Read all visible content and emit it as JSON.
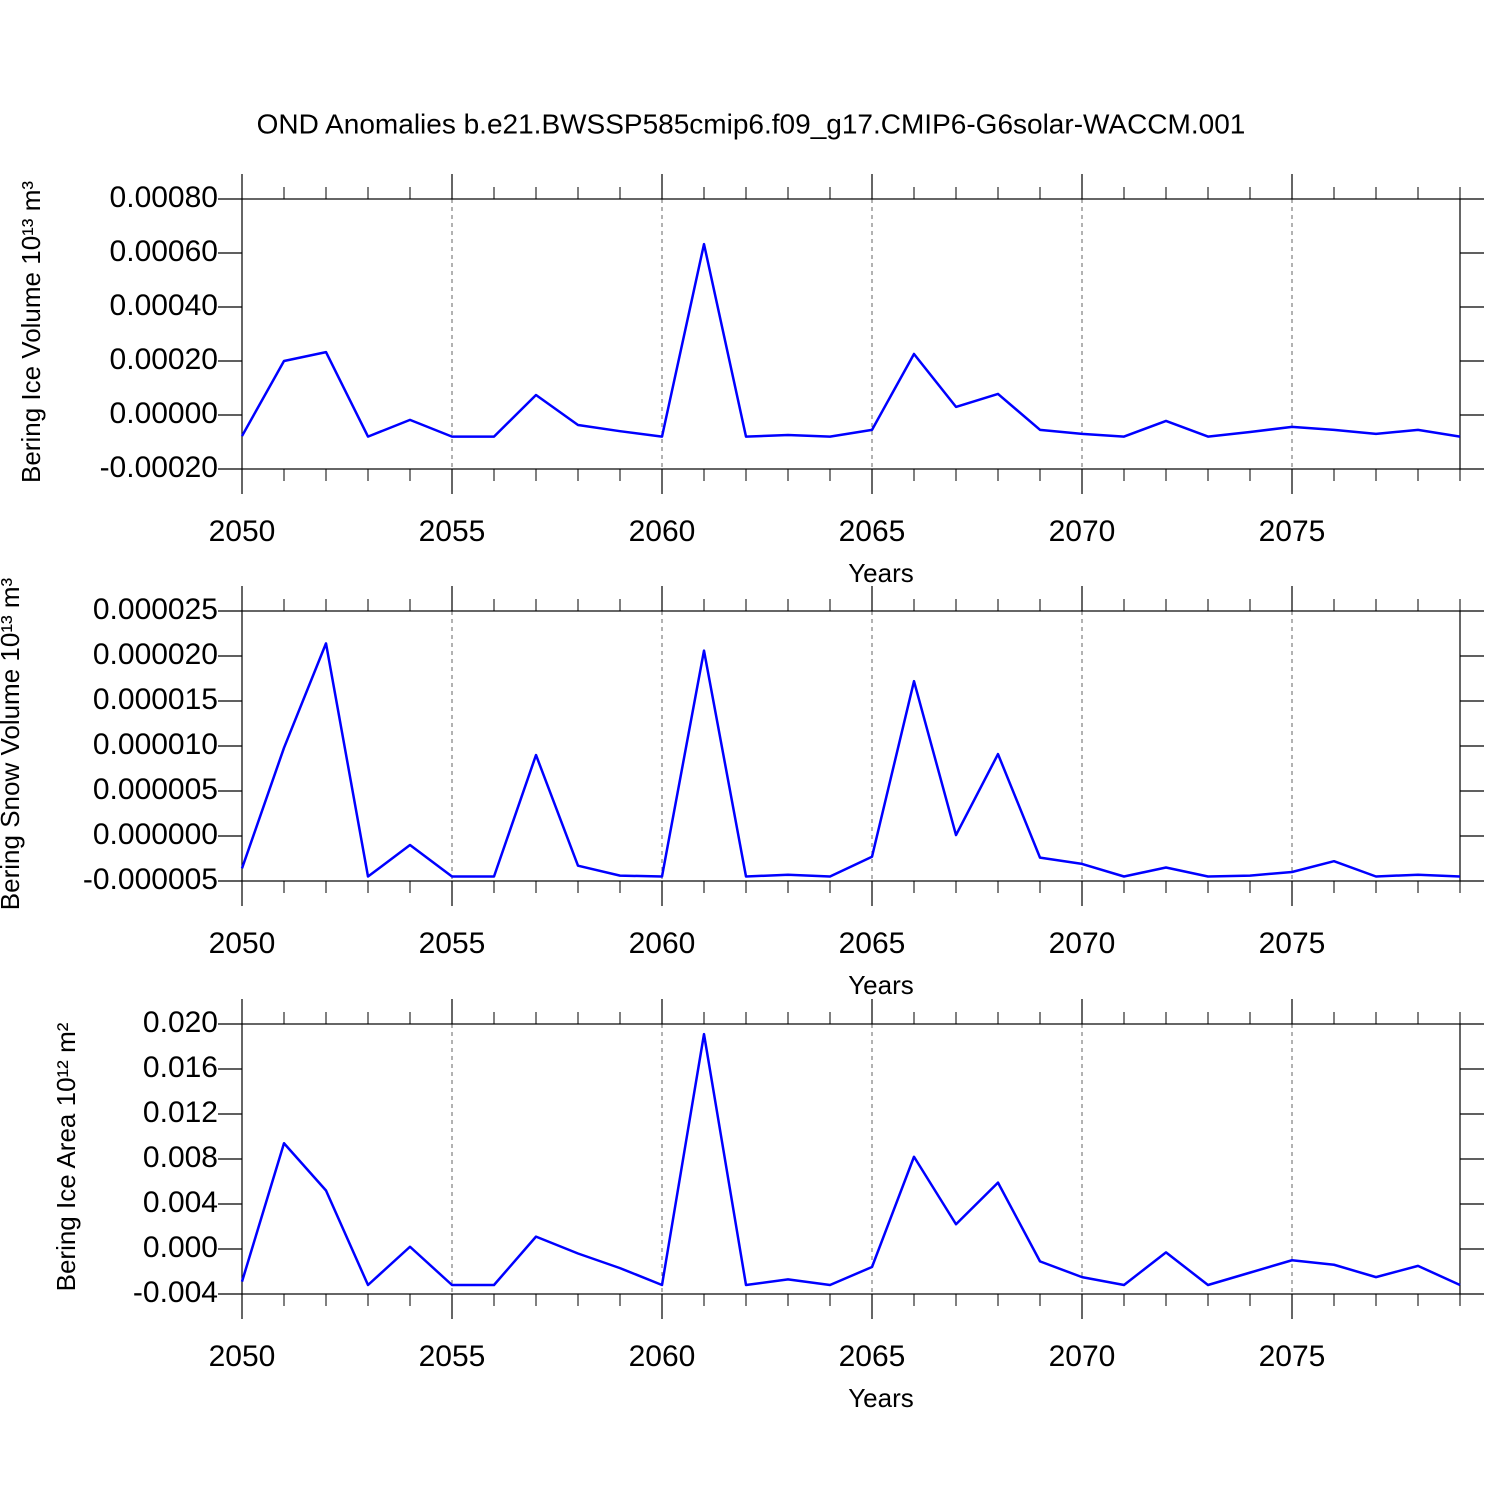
{
  "chart_data": [
    {
      "type": "line",
      "title": "OND Anomalies b.e21.BWSSP585cmip6.f09_g17.CMIP6-G6solar-WACCM.001",
      "ylabel": "Bering Ice Volume 10¹³ m³",
      "xlabel": "Years",
      "x": [
        2050,
        2051,
        2052,
        2053,
        2054,
        2055,
        2056,
        2057,
        2058,
        2059,
        2060,
        2061,
        2062,
        2063,
        2064,
        2065,
        2066,
        2067,
        2068,
        2069,
        2070,
        2071,
        2072,
        2073,
        2074,
        2075,
        2076,
        2077,
        2078,
        2079
      ],
      "values": [
        -7.8e-05,
        0.0002,
        0.000233,
        -8e-05,
        -1.8e-05,
        -8e-05,
        -8e-05,
        7.4e-05,
        -3.7e-05,
        -6e-05,
        -8e-05,
        0.000633,
        -8e-05,
        -7.4e-05,
        -8e-05,
        -5.5e-05,
        0.000226,
        3e-05,
        7.8e-05,
        -5.5e-05,
        -7e-05,
        -8e-05,
        -2.2e-05,
        -8e-05,
        -6.3e-05,
        -4.4e-05,
        -5.5e-05,
        -7e-05,
        -5.5e-05,
        -8e-05
      ],
      "color": "#0000ff",
      "xlim": [
        2050,
        2079
      ],
      "xticks": [
        2050,
        2055,
        2060,
        2065,
        2070,
        2075
      ],
      "ylim": [
        -0.0002,
        0.0008
      ],
      "yticks": [
        {
          "value": -0.0002,
          "label": "-0.00020"
        },
        {
          "value": 0,
          "label": "0.00000"
        },
        {
          "value": 0.0002,
          "label": "0.00020"
        },
        {
          "value": 0.0004,
          "label": "0.00040"
        },
        {
          "value": 0.0006,
          "label": "0.00060"
        },
        {
          "value": 0.0008,
          "label": "0.00080"
        }
      ],
      "grid": "x"
    },
    {
      "type": "line",
      "ylabel": "Bering Snow Volume 10¹³ m³",
      "xlabel": "Years",
      "x": [
        2050,
        2051,
        2052,
        2053,
        2054,
        2055,
        2056,
        2057,
        2058,
        2059,
        2060,
        2061,
        2062,
        2063,
        2064,
        2065,
        2066,
        2067,
        2068,
        2069,
        2070,
        2071,
        2072,
        2073,
        2074,
        2075,
        2076,
        2077,
        2078,
        2079
      ],
      "values": [
        -3.6e-06,
        9.8e-06,
        2.14e-05,
        -4.5e-06,
        -1e-06,
        -4.5e-06,
        -4.5e-06,
        9e-06,
        -3.3e-06,
        -4.4e-06,
        -4.5e-06,
        2.06e-05,
        -4.5e-06,
        -4.3e-06,
        -4.5e-06,
        -2.3e-06,
        1.72e-05,
        1e-07,
        9.1e-06,
        -2.4e-06,
        -3.1e-06,
        -4.5e-06,
        -3.5e-06,
        -4.5e-06,
        -4.4e-06,
        -4e-06,
        -2.8e-06,
        -4.5e-06,
        -4.3e-06,
        -4.5e-06
      ],
      "color": "#0000ff",
      "xlim": [
        2050,
        2079
      ],
      "xticks": [
        2050,
        2055,
        2060,
        2065,
        2070,
        2075
      ],
      "ylim": [
        -5e-06,
        2.5e-05
      ],
      "yticks": [
        {
          "value": -5e-06,
          "label": "-0.000005"
        },
        {
          "value": 0,
          "label": "0.000000"
        },
        {
          "value": 5e-06,
          "label": "0.000005"
        },
        {
          "value": 1e-05,
          "label": "0.000010"
        },
        {
          "value": 1.5e-05,
          "label": "0.000015"
        },
        {
          "value": 2e-05,
          "label": "0.000020"
        },
        {
          "value": 2.5e-05,
          "label": "0.000025"
        }
      ],
      "grid": "x"
    },
    {
      "type": "line",
      "ylabel": "Bering Ice Area 10¹² m²",
      "xlabel": "Years",
      "x": [
        2050,
        2051,
        2052,
        2053,
        2054,
        2055,
        2056,
        2057,
        2058,
        2059,
        2060,
        2061,
        2062,
        2063,
        2064,
        2065,
        2066,
        2067,
        2068,
        2069,
        2070,
        2071,
        2072,
        2073,
        2074,
        2075,
        2076,
        2077,
        2078,
        2079
      ],
      "values": [
        -0.0029,
        0.0094,
        0.0052,
        -0.0032,
        0.0002,
        -0.0032,
        -0.0032,
        0.0011,
        -0.0004,
        -0.0017,
        -0.0032,
        0.0191,
        -0.0032,
        -0.0027,
        -0.0032,
        -0.0016,
        0.0082,
        0.0022,
        0.0059,
        -0.0011,
        -0.0025,
        -0.0032,
        -0.0003,
        -0.0032,
        -0.0021,
        -0.001,
        -0.0014,
        -0.0025,
        -0.0015,
        -0.0032
      ],
      "color": "#0000ff",
      "xlim": [
        2050,
        2079
      ],
      "xticks": [
        2050,
        2055,
        2060,
        2065,
        2070,
        2075
      ],
      "ylim": [
        -0.004,
        0.02
      ],
      "yticks": [
        {
          "value": -0.004,
          "label": "-0.004"
        },
        {
          "value": 0,
          "label": "0.000"
        },
        {
          "value": 0.004,
          "label": "0.004"
        },
        {
          "value": 0.008,
          "label": "0.008"
        },
        {
          "value": 0.012,
          "label": "0.012"
        },
        {
          "value": 0.016,
          "label": "0.016"
        },
        {
          "value": 0.02,
          "label": "0.020"
        }
      ],
      "grid": "x"
    }
  ]
}
